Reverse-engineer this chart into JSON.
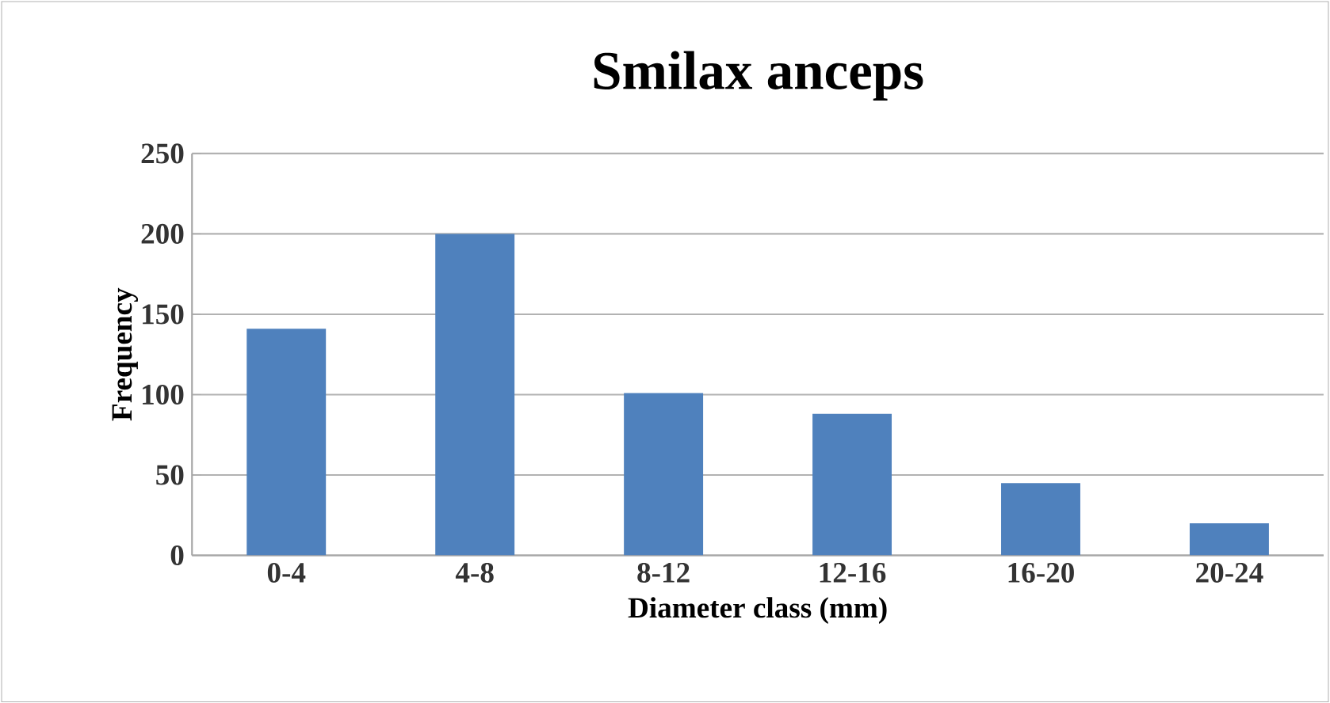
{
  "chart_data": {
    "type": "bar",
    "title": "Smilax anceps",
    "xlabel": "Diameter class (mm)",
    "ylabel": "Frequency",
    "categories": [
      "0-4",
      "4-8",
      "8-12",
      "12-16",
      "16-20",
      "20-24"
    ],
    "values": [
      141,
      200,
      101,
      88,
      45,
      20
    ],
    "color": "#4f81bd",
    "ylim": [
      0,
      250
    ],
    "yticks": [
      0,
      50,
      100,
      150,
      200,
      250
    ],
    "grid": "y"
  }
}
